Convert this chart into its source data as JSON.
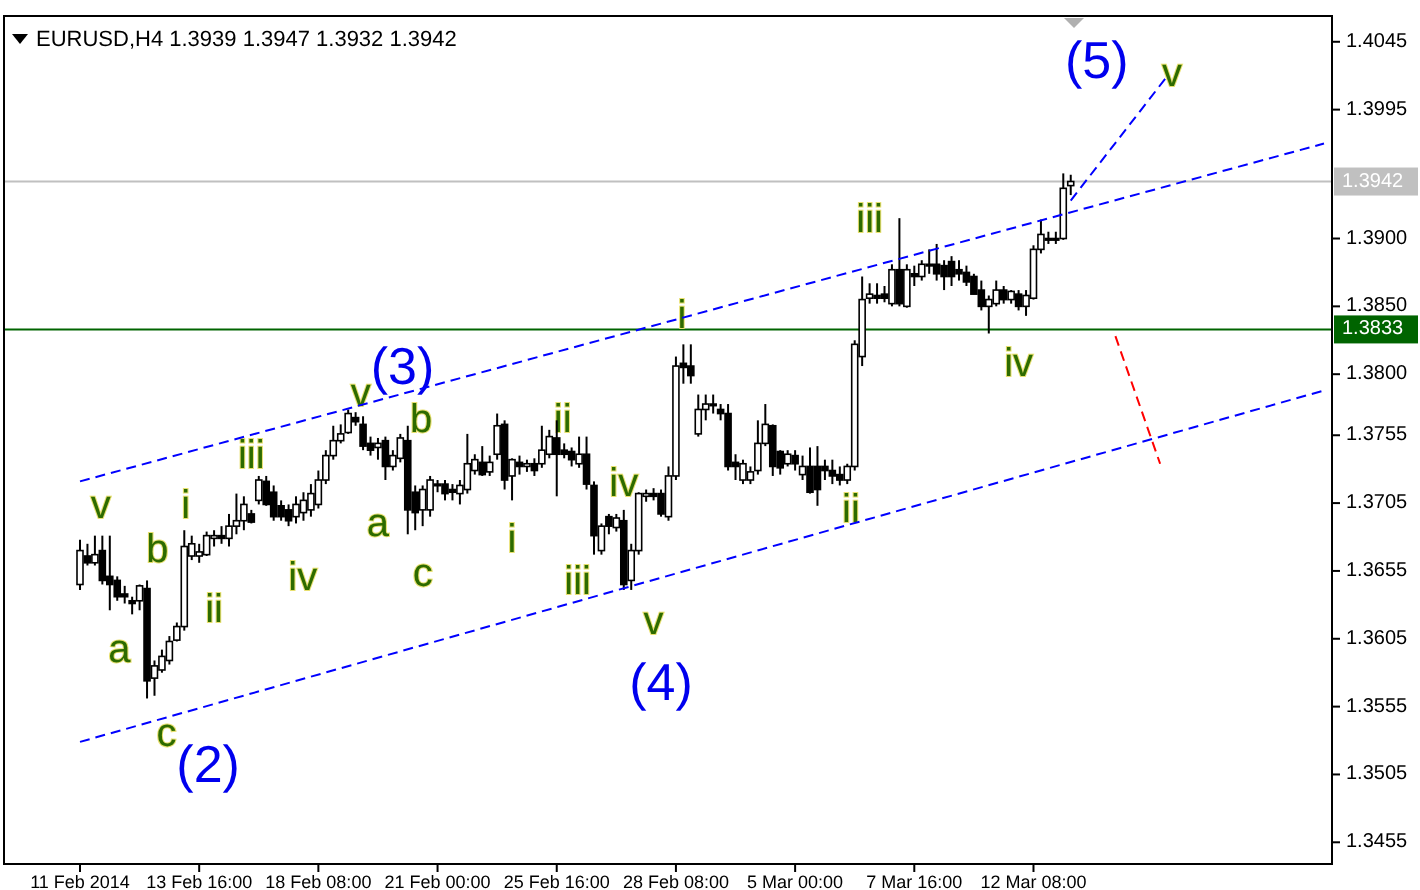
{
  "chart_data": {
    "type": "candlestick",
    "title": "EURUSD,H4  1.3939 1.3947 1.3932 1.3942",
    "categories": [
      "11 Feb 2014",
      null,
      null,
      null,
      null,
      null,
      null,
      null,
      null,
      null,
      null,
      null,
      null,
      null,
      null,
      null,
      "13 Feb 16:00",
      null,
      null,
      null,
      null,
      null,
      null,
      null,
      null,
      null,
      null,
      null,
      null,
      null,
      null,
      null,
      "18 Feb 08:00",
      null,
      null,
      null,
      null,
      null,
      null,
      null,
      null,
      null,
      null,
      null,
      null,
      null,
      null,
      null,
      "21 Feb 00:00",
      null,
      null,
      null,
      null,
      null,
      null,
      null,
      null,
      null,
      null,
      null,
      null,
      null,
      null,
      null,
      "25 Feb 16:00",
      null,
      null,
      null,
      null,
      null,
      null,
      null,
      null,
      null,
      null,
      null,
      null,
      null,
      null,
      null,
      "28 Feb 08:00",
      null,
      null,
      null,
      null,
      null,
      null,
      null,
      null,
      null,
      null,
      null,
      null,
      null,
      null,
      null,
      "5 Mar 00:00",
      null,
      null,
      null,
      null,
      null,
      null,
      null,
      null,
      null,
      null,
      null,
      null,
      null,
      null,
      null,
      "7 Mar 16:00",
      null,
      null,
      null,
      null,
      null,
      null,
      null,
      null,
      null,
      null,
      null,
      null,
      null,
      null,
      null,
      "12 Mar 08:00",
      null,
      null,
      null,
      null,
      null,
      null,
      null,
      null,
      null,
      null,
      null,
      null,
      null,
      null,
      null,
      null,
      null,
      null,
      null,
      null,
      null,
      null,
      null,
      null,
      null,
      null,
      null,
      null,
      null,
      null,
      null,
      null,
      null,
      null,
      null,
      null,
      null,
      null,
      null
    ],
    "ylim": [
      1.3439,
      1.4064
    ],
    "yticks": [
      1.3455,
      1.3505,
      1.3555,
      1.3605,
      1.3655,
      1.3705,
      1.3755,
      {
        "value": 1.38,
        "label": "1.3800"
      },
      {
        "value": 1.385,
        "label": "1.3850"
      },
      {
        "value": 1.39,
        "label": "1.3900"
      },
      1.3995,
      1.4045
    ],
    "ref_lines": [
      {
        "axis": "y",
        "value": 1.3942,
        "label": "1.3942",
        "color": "#c0c0c0"
      },
      {
        "axis": "y",
        "value": 1.3833,
        "label": "1.3833",
        "color": "#006400"
      }
    ],
    "series": [
      {
        "color": "#000000",
        "ohlc": [
          [
            1.3645,
            1.3678,
            1.3641,
            1.367
          ],
          [
            1.3666,
            1.3675,
            1.3659,
            1.3661
          ],
          [
            1.3661,
            1.3681,
            1.3659,
            1.3667
          ],
          [
            1.367,
            1.3681,
            1.3645,
            1.3648
          ],
          [
            1.3651,
            1.3681,
            1.3626,
            1.3645
          ],
          [
            1.3648,
            1.3651,
            1.3633,
            1.3636
          ],
          [
            1.3638,
            1.3644,
            1.3631,
            1.3636
          ],
          [
            1.3633,
            1.3636,
            1.3623,
            1.3631
          ],
          [
            1.3633,
            1.3645,
            1.3626,
            1.3644
          ],
          [
            1.3642,
            1.3648,
            1.3561,
            1.3574
          ],
          [
            1.3576,
            1.3589,
            1.3563,
            1.3585
          ],
          [
            1.3582,
            1.3597,
            1.358,
            1.3592
          ],
          [
            1.3589,
            1.3607,
            1.3586,
            1.3603
          ],
          [
            1.3604,
            1.3617,
            1.3603,
            1.3614
          ],
          [
            1.3614,
            1.3685,
            1.3611,
            1.3673
          ],
          [
            1.3666,
            1.3681,
            1.3663,
            1.3675
          ],
          [
            1.3666,
            1.3675,
            1.3661,
            1.3669
          ],
          [
            1.3667,
            1.3684,
            1.3666,
            1.3681
          ],
          [
            1.3679,
            1.3685,
            1.3673,
            1.3681
          ],
          [
            1.3681,
            1.3688,
            1.3675,
            1.3679
          ],
          [
            1.3679,
            1.3697,
            1.3673,
            1.3688
          ],
          [
            1.3688,
            1.3712,
            1.3682,
            1.3692
          ],
          [
            1.3692,
            1.371,
            1.3685,
            1.3704
          ],
          [
            1.3697,
            1.37,
            1.369,
            1.3691
          ],
          [
            1.3707,
            1.3725,
            1.3704,
            1.3722
          ],
          [
            1.3721,
            1.3725,
            1.3703,
            1.3704
          ],
          [
            1.3713,
            1.3718,
            1.3692,
            1.3695
          ],
          [
            1.3703,
            1.3707,
            1.3692,
            1.3695
          ],
          [
            1.37,
            1.3704,
            1.3688,
            1.3692
          ],
          [
            1.3695,
            1.371,
            1.369,
            1.3704
          ],
          [
            1.3698,
            1.3713,
            1.3692,
            1.3707
          ],
          [
            1.37,
            1.3719,
            1.3695,
            1.3712
          ],
          [
            1.3704,
            1.3729,
            1.3701,
            1.3722
          ],
          [
            1.3722,
            1.3744,
            1.3719,
            1.374
          ],
          [
            1.374,
            1.3762,
            1.3737,
            1.3751
          ],
          [
            1.3751,
            1.3763,
            1.3749,
            1.3756
          ],
          [
            1.3757,
            1.3774,
            1.3756,
            1.3771
          ],
          [
            1.3768,
            1.3772,
            1.3762,
            1.3765
          ],
          [
            1.3763,
            1.3769,
            1.3744,
            1.3747
          ],
          [
            1.3749,
            1.3754,
            1.374,
            1.3744
          ],
          [
            1.3746,
            1.3753,
            1.3737,
            1.3749
          ],
          [
            1.3751,
            1.3754,
            1.3722,
            1.3732
          ],
          [
            1.3732,
            1.3744,
            1.3729,
            1.374
          ],
          [
            1.3738,
            1.3756,
            1.3735,
            1.3753
          ],
          [
            1.3751,
            1.3762,
            1.3682,
            1.37
          ],
          [
            1.3713,
            1.3718,
            1.3685,
            1.3698
          ],
          [
            1.37,
            1.3718,
            1.3688,
            1.3715
          ],
          [
            1.37,
            1.3725,
            1.3695,
            1.3722
          ],
          [
            1.3719,
            1.3722,
            1.3713,
            1.3718
          ],
          [
            1.3719,
            1.3722,
            1.3707,
            1.3712
          ],
          [
            1.3715,
            1.3719,
            1.3707,
            1.3713
          ],
          [
            1.3712,
            1.3722,
            1.3704,
            1.3718
          ],
          [
            1.3715,
            1.3756,
            1.3712,
            1.3734
          ],
          [
            1.3729,
            1.3741,
            1.3726,
            1.3737
          ],
          [
            1.3735,
            1.3747,
            1.3725,
            1.3726
          ],
          [
            1.3728,
            1.374,
            1.3725,
            1.3735
          ],
          [
            1.3741,
            1.3771,
            1.3737,
            1.3762
          ],
          [
            1.3763,
            1.3766,
            1.3715,
            1.3722
          ],
          [
            1.3725,
            1.3738,
            1.3707,
            1.3737
          ],
          [
            1.3735,
            1.374,
            1.3726,
            1.3732
          ],
          [
            1.3732,
            1.3737,
            1.3728,
            1.3734
          ],
          [
            1.3734,
            1.3738,
            1.3725,
            1.3729
          ],
          [
            1.3734,
            1.3762,
            1.3731,
            1.3744
          ],
          [
            1.3741,
            1.3759,
            1.3738,
            1.3754
          ],
          [
            1.3753,
            1.3766,
            1.371,
            1.3741
          ],
          [
            1.3744,
            1.3749,
            1.3738,
            1.3741
          ],
          [
            1.3743,
            1.3746,
            1.3732,
            1.3737
          ],
          [
            1.3734,
            1.3754,
            1.3731,
            1.3741
          ],
          [
            1.3741,
            1.3754,
            1.3715,
            1.3719
          ],
          [
            1.3718,
            1.3721,
            1.3667,
            1.3681
          ],
          [
            1.367,
            1.369,
            1.3667,
            1.3688
          ],
          [
            1.3695,
            1.3697,
            1.3682,
            1.3688
          ],
          [
            1.3687,
            1.3697,
            1.3684,
            1.3694
          ],
          [
            1.3692,
            1.37,
            1.3641,
            1.3645
          ],
          [
            1.3648,
            1.3675,
            1.3641,
            1.367
          ],
          [
            1.367,
            1.3713,
            1.3667,
            1.3712
          ],
          [
            1.371,
            1.3715,
            1.3706,
            1.3712
          ],
          [
            1.3712,
            1.3716,
            1.3707,
            1.371
          ],
          [
            1.3712,
            1.3715,
            1.3695,
            1.3697
          ],
          [
            1.3695,
            1.3732,
            1.3692,
            1.3725
          ],
          [
            1.3725,
            1.3813,
            1.3722,
            1.3806
          ],
          [
            1.3808,
            1.3822,
            1.3793,
            1.3805
          ],
          [
            1.3806,
            1.3822,
            1.3793,
            1.3799
          ],
          [
            1.3756,
            1.3785,
            1.3754,
            1.3774
          ],
          [
            1.3774,
            1.3785,
            1.3766,
            1.3778
          ],
          [
            1.3777,
            1.3785,
            1.3771,
            1.3778
          ],
          [
            1.3774,
            1.3778,
            1.3766,
            1.3771
          ],
          [
            1.3771,
            1.3778,
            1.3729,
            1.3732
          ],
          [
            1.3735,
            1.3741,
            1.3722,
            1.3732
          ],
          [
            1.3722,
            1.3737,
            1.3719,
            1.3734
          ],
          [
            1.3722,
            1.3732,
            1.3719,
            1.3728
          ],
          [
            1.3729,
            1.3766,
            1.3726,
            1.3749
          ],
          [
            1.3749,
            1.3778,
            1.3747,
            1.3763
          ],
          [
            1.3762,
            1.3763,
            1.3725,
            1.3732
          ],
          [
            1.3743,
            1.3744,
            1.3726,
            1.3731
          ],
          [
            1.3734,
            1.3744,
            1.3732,
            1.3741
          ],
          [
            1.374,
            1.3744,
            1.3729,
            1.3734
          ],
          [
            1.3726,
            1.374,
            1.3722,
            1.3732
          ],
          [
            1.3732,
            1.3746,
            1.3712,
            1.3713
          ],
          [
            1.3732,
            1.3747,
            1.3703,
            1.3715
          ],
          [
            1.3732,
            1.3737,
            1.3722,
            1.3729
          ],
          [
            1.3729,
            1.3737,
            1.3719,
            1.3725
          ],
          [
            1.3726,
            1.3732,
            1.3718,
            1.3722
          ],
          [
            1.3722,
            1.3734,
            1.3719,
            1.3732
          ],
          [
            1.3732,
            1.3825,
            1.3729,
            1.3822
          ],
          [
            1.3813,
            1.3872,
            1.3806,
            1.3855
          ],
          [
            1.3856,
            1.3867,
            1.3852,
            1.3859
          ],
          [
            1.3858,
            1.3867,
            1.3852,
            1.3856
          ],
          [
            1.3859,
            1.3865,
            1.3853,
            1.3856
          ],
          [
            1.3852,
            1.3881,
            1.385,
            1.3877
          ],
          [
            1.3877,
            1.3915,
            1.385,
            1.3852
          ],
          [
            1.385,
            1.3881,
            1.3849,
            1.3877
          ],
          [
            1.3874,
            1.388,
            1.3865,
            1.3872
          ],
          [
            1.3872,
            1.3884,
            1.3869,
            1.3881
          ],
          [
            1.388,
            1.3892,
            1.3874,
            1.3881
          ],
          [
            1.3881,
            1.3896,
            1.3869,
            1.3874
          ],
          [
            1.388,
            1.3884,
            1.3862,
            1.3872
          ],
          [
            1.3883,
            1.3887,
            1.3865,
            1.3872
          ],
          [
            1.3877,
            1.3884,
            1.3869,
            1.3874
          ],
          [
            1.3875,
            1.388,
            1.3865,
            1.3868
          ],
          [
            1.3872,
            1.3874,
            1.3859,
            1.3859
          ],
          [
            1.3862,
            1.3869,
            1.3847,
            1.385
          ],
          [
            1.385,
            1.3858,
            1.383,
            1.3855
          ],
          [
            1.3852,
            1.3869,
            1.385,
            1.3862
          ],
          [
            1.3862,
            1.3865,
            1.3852,
            1.3855
          ],
          [
            1.3855,
            1.3862,
            1.3852,
            1.3861
          ],
          [
            1.3859,
            1.3862,
            1.3847,
            1.385
          ],
          [
            1.385,
            1.3862,
            1.3843,
            1.3858
          ],
          [
            1.3856,
            1.3895,
            1.3855,
            1.3892
          ],
          [
            1.3892,
            1.3914,
            1.3889,
            1.3903
          ],
          [
            1.3899,
            1.3905,
            1.3896,
            1.39
          ],
          [
            1.39,
            1.3905,
            1.3896,
            1.3899
          ],
          [
            1.39,
            1.3948,
            1.3899,
            1.3937
          ],
          [
            1.3939,
            1.3947,
            1.3932,
            1.3942
          ],
          null,
          null,
          null,
          null,
          null,
          null,
          null,
          null,
          null,
          null,
          null,
          null,
          null,
          null,
          null,
          null,
          null,
          null,
          null,
          null,
          null,
          null,
          null,
          null,
          null,
          null,
          null,
          null,
          null,
          null,
          null,
          null,
          null,
          null
        ]
      },
      {
        "type": "line",
        "color": "#0000ff",
        "line_style": "dashed",
        "values": [
          1.3721,
          null,
          null,
          null,
          null,
          null,
          null,
          null,
          null,
          null,
          null,
          null,
          null,
          null,
          null,
          null,
          null,
          null,
          null,
          null,
          null,
          null,
          null,
          null,
          null,
          null,
          null,
          null,
          null,
          null,
          null,
          null,
          null,
          null,
          null,
          null,
          null,
          null,
          null,
          null,
          null,
          null,
          null,
          null,
          null,
          null,
          null,
          null,
          null,
          null,
          null,
          null,
          null,
          null,
          null,
          null,
          null,
          null,
          null,
          null,
          null,
          null,
          null,
          null,
          null,
          null,
          null,
          null,
          null,
          null,
          null,
          null,
          null,
          null,
          null,
          null,
          null,
          null,
          null,
          null,
          null,
          null,
          null,
          null,
          null,
          null,
          null,
          null,
          null,
          null,
          null,
          null,
          null,
          null,
          null,
          null,
          null,
          null,
          null,
          null,
          null,
          null,
          null,
          null,
          null,
          null,
          null,
          null,
          null,
          null,
          null,
          null,
          null,
          null,
          null,
          null,
          null,
          null,
          null,
          null,
          null,
          null,
          null,
          null,
          null,
          null,
          null,
          null,
          null,
          null,
          null,
          null,
          null,
          null,
          null,
          null,
          null,
          null,
          null,
          null,
          null,
          null,
          null,
          null,
          null,
          null,
          null,
          null,
          null,
          null,
          null,
          null,
          null,
          null,
          null,
          null,
          null,
          null,
          null,
          null,
          null,
          null,
          null,
          null,
          null,
          null,
          null,
          1.397
        ]
      },
      {
        "type": "line",
        "color": "#0000ff",
        "line_style": "dashed",
        "values": [
          1.3529,
          null,
          null,
          null,
          null,
          null,
          null,
          null,
          null,
          null,
          null,
          null,
          null,
          null,
          null,
          null,
          null,
          null,
          null,
          null,
          null,
          null,
          null,
          null,
          null,
          null,
          null,
          null,
          null,
          null,
          null,
          null,
          null,
          null,
          null,
          null,
          null,
          null,
          null,
          null,
          null,
          null,
          null,
          null,
          null,
          null,
          null,
          null,
          null,
          null,
          null,
          null,
          null,
          null,
          null,
          null,
          null,
          null,
          null,
          null,
          null,
          null,
          null,
          null,
          null,
          null,
          null,
          null,
          null,
          null,
          null,
          null,
          null,
          null,
          null,
          null,
          null,
          null,
          null,
          null,
          null,
          null,
          null,
          null,
          null,
          null,
          null,
          null,
          null,
          null,
          null,
          null,
          null,
          null,
          null,
          null,
          null,
          null,
          null,
          null,
          null,
          null,
          null,
          null,
          null,
          null,
          null,
          null,
          null,
          null,
          null,
          null,
          null,
          null,
          null,
          null,
          null,
          null,
          null,
          null,
          null,
          null,
          null,
          null,
          null,
          null,
          null,
          null,
          null,
          null,
          null,
          null,
          null,
          null,
          null,
          null,
          null,
          null,
          null,
          null,
          null,
          null,
          null,
          null,
          null,
          null,
          null,
          null,
          null,
          null,
          null,
          null,
          null,
          null,
          null,
          null,
          null,
          null,
          null,
          null,
          null,
          null,
          null,
          null,
          null,
          null,
          null,
          1.3788
        ]
      },
      {
        "type": "line",
        "color": "#0000ff",
        "line_style": "dashed",
        "values": [
          null,
          null,
          null,
          null,
          null,
          null,
          null,
          null,
          null,
          null,
          null,
          null,
          null,
          null,
          null,
          null,
          null,
          null,
          null,
          null,
          null,
          null,
          null,
          null,
          null,
          null,
          null,
          null,
          null,
          null,
          null,
          null,
          null,
          null,
          null,
          null,
          null,
          null,
          null,
          null,
          null,
          null,
          null,
          null,
          null,
          null,
          null,
          null,
          null,
          null,
          null,
          null,
          null,
          null,
          null,
          null,
          null,
          null,
          null,
          null,
          null,
          null,
          null,
          null,
          null,
          null,
          null,
          null,
          null,
          null,
          null,
          null,
          null,
          null,
          null,
          null,
          null,
          null,
          null,
          null,
          null,
          null,
          null,
          null,
          null,
          null,
          null,
          null,
          null,
          null,
          null,
          null,
          null,
          null,
          null,
          null,
          null,
          null,
          null,
          null,
          null,
          null,
          null,
          null,
          null,
          null,
          null,
          null,
          null,
          null,
          null,
          null,
          null,
          null,
          null,
          null,
          null,
          null,
          null,
          null,
          null,
          null,
          null,
          null,
          null,
          null,
          null,
          null,
          null,
          null,
          null,
          null,
          null,
          1.3928,
          null,
          null,
          null,
          null,
          null,
          null,
          null,
          null,
          null,
          null,
          null,
          null,
          1.402,
          null,
          null,
          null,
          null,
          null,
          null,
          null,
          null,
          null,
          null,
          null,
          null,
          null,
          null,
          null,
          null,
          null,
          null,
          null,
          null,
          null
        ]
      },
      {
        "type": "line",
        "color": "#ff0000",
        "line_style": "dashed",
        "values": [
          null,
          null,
          null,
          null,
          null,
          null,
          null,
          null,
          null,
          null,
          null,
          null,
          null,
          null,
          null,
          null,
          null,
          null,
          null,
          null,
          null,
          null,
          null,
          null,
          null,
          null,
          null,
          null,
          null,
          null,
          null,
          null,
          null,
          null,
          null,
          null,
          null,
          null,
          null,
          null,
          null,
          null,
          null,
          null,
          null,
          null,
          null,
          null,
          null,
          null,
          null,
          null,
          null,
          null,
          null,
          null,
          null,
          null,
          null,
          null,
          null,
          null,
          null,
          null,
          null,
          null,
          null,
          null,
          null,
          null,
          null,
          null,
          null,
          null,
          null,
          null,
          null,
          null,
          null,
          null,
          null,
          null,
          null,
          null,
          null,
          null,
          null,
          null,
          null,
          null,
          null,
          null,
          null,
          null,
          null,
          null,
          null,
          null,
          null,
          null,
          null,
          null,
          null,
          null,
          null,
          null,
          null,
          null,
          null,
          null,
          null,
          null,
          null,
          null,
          null,
          null,
          null,
          null,
          null,
          null,
          null,
          null,
          null,
          null,
          null,
          null,
          null,
          null,
          null,
          null,
          null,
          null,
          null,
          null,
          null,
          null,
          null,
          null,
          null,
          1.3828,
          null,
          null,
          null,
          null,
          null,
          1.3734,
          null,
          null,
          null,
          null,
          null,
          null,
          null,
          null,
          null,
          null,
          null,
          null,
          null,
          null,
          null,
          null,
          null,
          null,
          null,
          null,
          null,
          null
        ]
      }
    ],
    "annotations": [
      "v",
      "b",
      "i",
      "iii",
      "a",
      "ii",
      "iv",
      "c",
      "(2)",
      "v",
      "(3)",
      "b",
      "a",
      "c",
      "ii",
      "i",
      "iv",
      "iii",
      "v",
      "(4)",
      "i",
      "ii",
      "iii",
      "iv",
      "(5)",
      "v"
    ]
  }
}
